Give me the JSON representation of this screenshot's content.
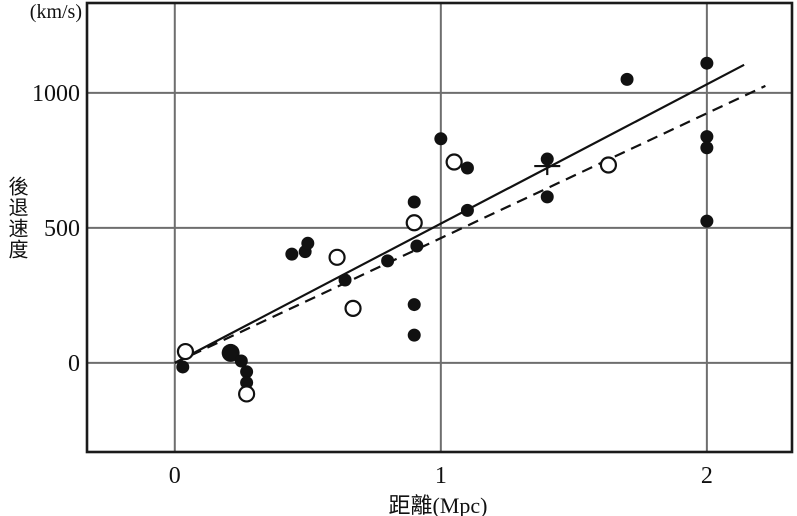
{
  "page": {
    "background": "#ffffff"
  },
  "colors": {
    "grid": "#6e6e6e",
    "border": "#1a1a1a",
    "marker": "#111111",
    "open_marker_fill": "#ffffff"
  },
  "chart_data": {
    "type": "scatter",
    "title": "",
    "xlabel": "距離(Mpc)",
    "ylabel": "後退速度",
    "y_unit_label": "(km/s)",
    "xlim": [
      -0.33,
      2.32
    ],
    "ylim": [
      -330,
      1333
    ],
    "x_ticks": [
      0,
      1,
      2
    ],
    "y_ticks": [
      0,
      500,
      1000
    ],
    "grid": true,
    "legend": "none",
    "series": [
      {
        "name": "filled-galaxies",
        "marker": "filled-circle",
        "color": "#111111",
        "points": [
          [
            0.03,
            -15
          ],
          [
            0.21,
            37,
            9
          ],
          [
            0.25,
            7
          ],
          [
            0.27,
            -33
          ],
          [
            0.27,
            -73
          ],
          [
            0.44,
            403
          ],
          [
            0.49,
            412
          ],
          [
            0.5,
            443
          ],
          [
            0.64,
            307
          ],
          [
            0.8,
            378
          ],
          [
            0.9,
            596
          ],
          [
            0.91,
            433
          ],
          [
            0.9,
            216
          ],
          [
            0.9,
            103
          ],
          [
            1.0,
            830
          ],
          [
            1.1,
            722
          ],
          [
            1.1,
            565
          ],
          [
            1.4,
            755
          ],
          [
            1.4,
            615
          ],
          [
            1.7,
            1050
          ],
          [
            2.0,
            1110
          ],
          [
            2.0,
            838
          ],
          [
            2.0,
            797
          ],
          [
            2.0,
            525
          ]
        ]
      },
      {
        "name": "open-galaxies",
        "marker": "open-circle",
        "color": "#111111",
        "points": [
          [
            0.04,
            42
          ],
          [
            0.27,
            -115
          ],
          [
            0.61,
            391
          ],
          [
            0.67,
            202
          ],
          [
            0.9,
            519
          ],
          [
            1.05,
            744
          ],
          [
            1.63,
            733
          ]
        ]
      },
      {
        "name": "group-mean",
        "marker": "plus",
        "color": "#111111",
        "points": [
          [
            1.4,
            729
          ]
        ]
      }
    ],
    "lines": [
      {
        "name": "solid-fit",
        "style": "solid",
        "x": [
          0,
          2.14
        ],
        "v": [
          0,
          1104
        ]
      },
      {
        "name": "dashed-fit",
        "style": "dashed",
        "x": [
          0,
          2.22
        ],
        "v": [
          0,
          1026
        ]
      }
    ]
  }
}
